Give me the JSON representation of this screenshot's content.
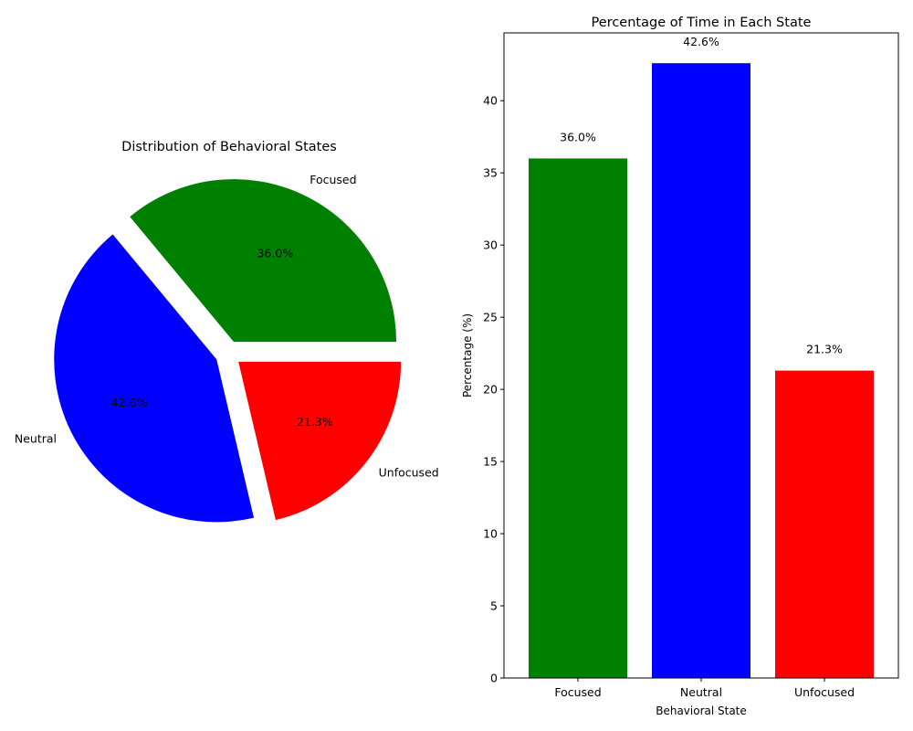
{
  "chart_data": [
    {
      "type": "pie",
      "title": "Distribution of Behavioral States",
      "labels": [
        "Focused",
        "Neutral",
        "Unfocused"
      ],
      "values": [
        36.0,
        42.6,
        21.3
      ],
      "value_labels": [
        "36.0%",
        "42.6%",
        "21.3%"
      ],
      "colors": [
        "#008000",
        "#0000ff",
        "#ff0000"
      ],
      "exploded": true
    },
    {
      "type": "bar",
      "title": "Percentage of Time in Each State",
      "categories": [
        "Focused",
        "Neutral",
        "Unfocused"
      ],
      "values": [
        36.0,
        42.6,
        21.3
      ],
      "value_labels": [
        "36.0%",
        "42.6%",
        "21.3%"
      ],
      "colors": [
        "#008000",
        "#0000ff",
        "#ff0000"
      ],
      "xlabel": "Behavioral State",
      "ylabel": "Percentage (%)",
      "ylim": [
        0,
        44.7
      ],
      "yticks": [
        0,
        5,
        10,
        15,
        20,
        25,
        30,
        35,
        40
      ],
      "grid": false
    }
  ]
}
